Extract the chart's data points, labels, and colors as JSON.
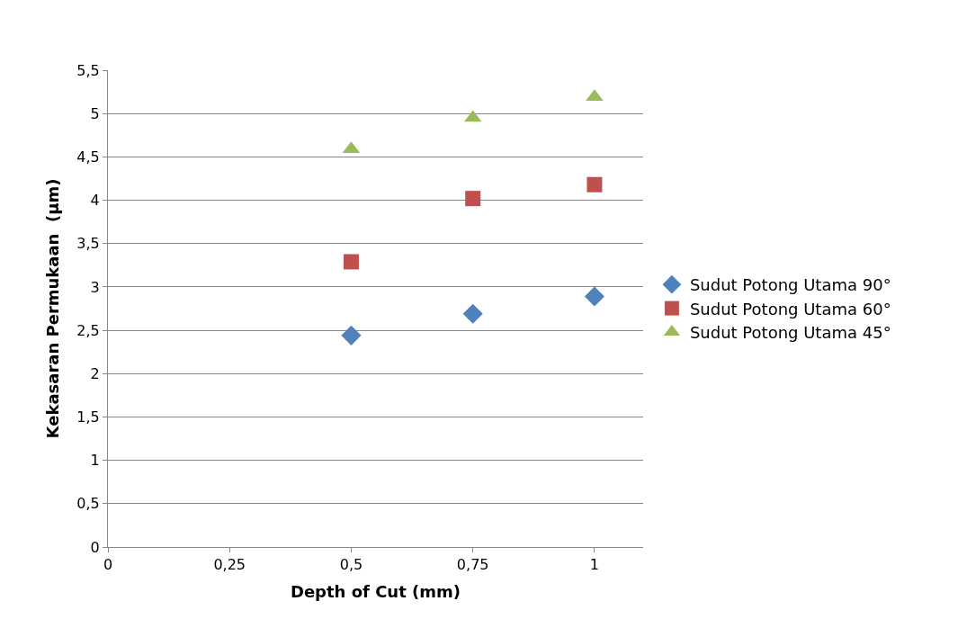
{
  "chart_data": {
    "type": "scatter",
    "xlabel": "Depth of Cut (mm)",
    "ylabel": "Kekasaran Permukaan  (µm)",
    "x": [
      0.5,
      0.75,
      1
    ],
    "series": [
      {
        "name": "Sudut Potong Utama 90°",
        "color": "#4f81bd",
        "marker": "diamond",
        "values": [
          2.44,
          2.69,
          2.89
        ]
      },
      {
        "name": "Sudut Potong Utama 60°",
        "color": "#c0504d",
        "marker": "square",
        "values": [
          3.29,
          4.02,
          4.18
        ]
      },
      {
        "name": "Sudut Potong Utama 45°",
        "color": "#9bbb59",
        "marker": "triangle",
        "values": [
          4.59,
          4.95,
          5.19
        ]
      }
    ],
    "xlim": [
      0,
      1.1
    ],
    "xticks": [
      0,
      {
        "value": 0.25,
        "label": "0,25"
      },
      {
        "value": 0.5,
        "label": "0,5"
      },
      {
        "value": 0.75,
        "label": "0,75"
      },
      1
    ],
    "ylim": [
      0,
      5.5
    ],
    "yticks": [
      0,
      {
        "value": 0.5,
        "label": "0,5"
      },
      1,
      {
        "value": 1.5,
        "label": "1,5"
      },
      2,
      {
        "value": 2.5,
        "label": "2,5"
      },
      3,
      {
        "value": 3.5,
        "label": "3,5"
      },
      4,
      {
        "value": 4.5,
        "label": "4,5"
      },
      5,
      {
        "value": 5.5,
        "label": "5,5"
      }
    ],
    "grid": "y",
    "legend": "right"
  }
}
